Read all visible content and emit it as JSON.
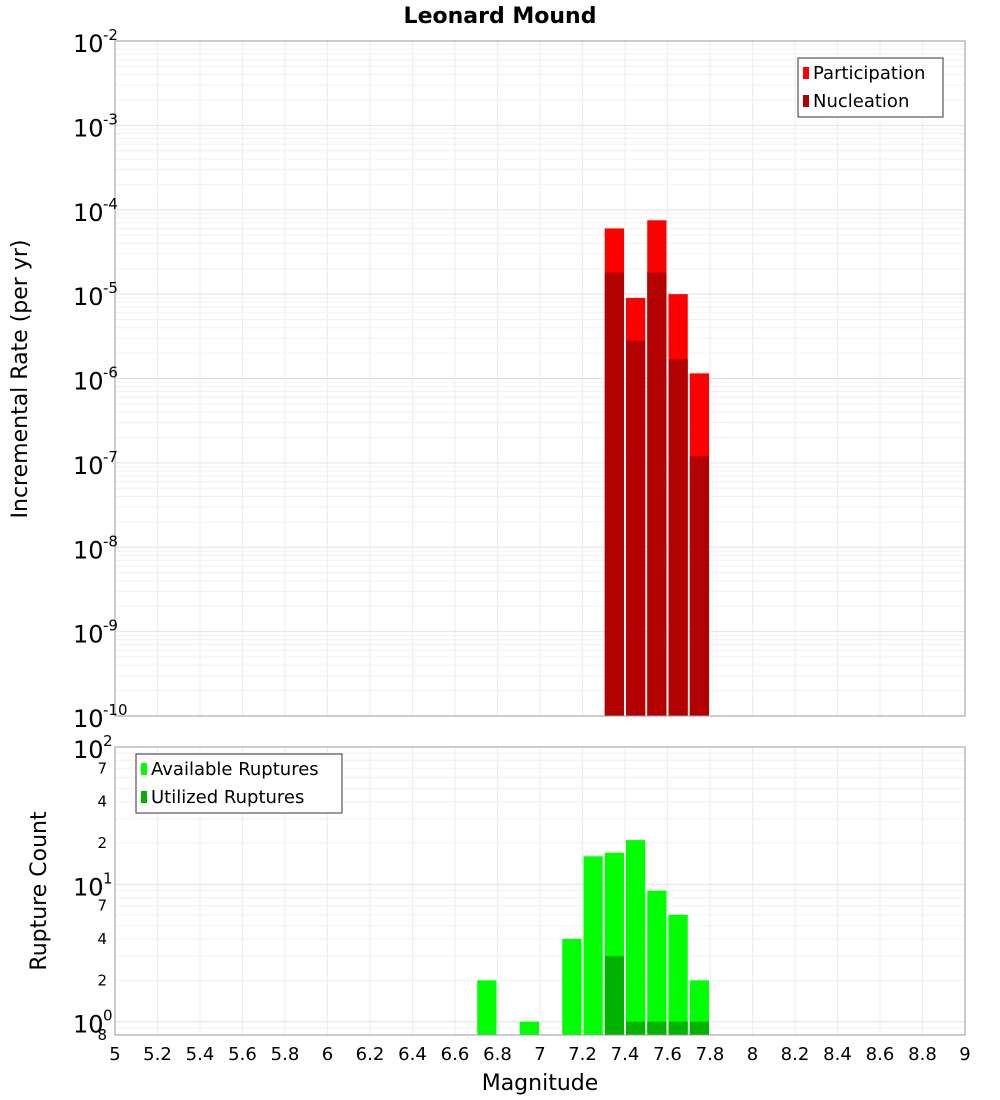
{
  "chart_data": {
    "title": "Leonard Mound",
    "xlabel": "Magnitude",
    "xlim": [
      5,
      9
    ],
    "xticks": [
      "5",
      "5.2",
      "5.4",
      "5.6",
      "5.8",
      "6",
      "6.2",
      "6.4",
      "6.6",
      "6.8",
      "7",
      "7.2",
      "7.4",
      "7.6",
      "7.8",
      "8",
      "8.2",
      "8.4",
      "8.6",
      "8.8",
      "9"
    ],
    "panels": [
      {
        "type": "bar",
        "ylabel": "Incremental Rate (per yr)",
        "yscale": "log",
        "ylim": [
          1e-10,
          0.01
        ],
        "ytick_bases": [
          "10",
          "10",
          "10",
          "10",
          "10",
          "10",
          "10",
          "10",
          "10"
        ],
        "ytick_exponents": [
          "-10",
          "-9",
          "-8",
          "-7",
          "-6",
          "-5",
          "-4",
          "-3",
          "-2"
        ],
        "legend_position": "top-right",
        "series": [
          {
            "name": "Participation",
            "color": "#ff0000",
            "x": [
              7.35,
              7.45,
              7.55,
              7.65,
              7.75
            ],
            "values": [
              6e-05,
              9e-06,
              7.5e-05,
              1e-05,
              1.15e-06
            ]
          },
          {
            "name": "Nucleation",
            "color": "#b30000",
            "x": [
              7.35,
              7.45,
              7.55,
              7.65,
              7.75
            ],
            "values": [
              1.8e-05,
              2.8e-06,
              1.8e-05,
              1.7e-06,
              1.2e-07
            ]
          }
        ]
      },
      {
        "type": "bar",
        "ylabel": "Rupture Count",
        "yscale": "log",
        "ylim": [
          0.8,
          100
        ],
        "ytick_bases": [
          "10",
          "10",
          "10"
        ],
        "ytick_exponents": [
          "0",
          "1",
          "2"
        ],
        "minor_tick_labels": [
          "8",
          "2",
          "4",
          "7",
          "2",
          "4",
          "7"
        ],
        "legend_position": "top-left",
        "series": [
          {
            "name": "Available Ruptures",
            "color": "#00ff00",
            "x": [
              6.75,
              6.95,
              7.15,
              7.25,
              7.35,
              7.45,
              7.55,
              7.65,
              7.75
            ],
            "values": [
              2,
              1,
              4,
              16,
              17,
              21,
              9,
              6,
              2
            ]
          },
          {
            "name": "Utilized Ruptures",
            "color": "#00b300",
            "x": [
              7.35,
              7.45,
              7.55,
              7.65,
              7.75
            ],
            "values": [
              3,
              1,
              1,
              1,
              1
            ]
          }
        ]
      }
    ]
  }
}
